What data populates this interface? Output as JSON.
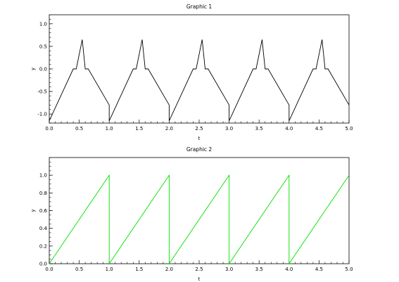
{
  "chart_data": [
    {
      "type": "line",
      "title": "Graphic 1",
      "xlabel": "t",
      "ylabel": "y",
      "xlim": [
        0,
        5
      ],
      "ylim": [
        -1.2,
        1.2
      ],
      "x_ticks": [
        "0.0",
        "0.5",
        "1.0",
        "1.5",
        "2.0",
        "2.5",
        "3.0",
        "3.5",
        "4.0",
        "4.5",
        "5.0"
      ],
      "y_ticks": [
        "-1.0",
        "-0.5",
        "0.0",
        "0.5",
        "1.0"
      ],
      "grid": false,
      "series": [
        {
          "color": "#000000",
          "x": [
            0.0,
            0.4,
            0.45,
            0.55,
            0.6,
            0.65,
            1.0,
            1.0,
            1.4,
            1.45,
            1.55,
            1.6,
            1.65,
            2.0,
            2.0,
            2.4,
            2.45,
            2.55,
            2.6,
            2.65,
            3.0,
            3.0,
            3.4,
            3.45,
            3.55,
            3.6,
            3.65,
            4.0,
            4.0,
            4.4,
            4.45,
            4.55,
            4.6,
            4.65,
            5.0
          ],
          "y": [
            -1.15,
            0.0,
            0.0,
            0.65,
            0.0,
            0.0,
            -0.8,
            -1.15,
            0.0,
            0.0,
            0.65,
            0.0,
            0.0,
            -0.8,
            -1.15,
            0.0,
            0.0,
            0.65,
            0.0,
            0.0,
            -0.8,
            -1.15,
            0.0,
            0.0,
            0.65,
            0.0,
            0.0,
            -0.8,
            -1.15,
            0.0,
            0.0,
            0.65,
            0.0,
            0.0,
            -0.8
          ]
        }
      ]
    },
    {
      "type": "line",
      "title": "Graphic 2",
      "xlabel": "t",
      "ylabel": "y",
      "xlim": [
        0,
        5
      ],
      "ylim": [
        0,
        1.2
      ],
      "x_ticks": [
        "0.0",
        "0.5",
        "1.0",
        "1.5",
        "2.0",
        "2.5",
        "3.0",
        "3.5",
        "4.0",
        "4.5",
        "5.0"
      ],
      "y_ticks": [
        "0.0",
        "0.2",
        "0.4",
        "0.6",
        "0.8",
        "1.0"
      ],
      "grid": false,
      "series": [
        {
          "color": "#00e000",
          "x": [
            0.0,
            1.0,
            1.0,
            2.0,
            2.0,
            3.0,
            3.0,
            4.0,
            4.0,
            5.0
          ],
          "y": [
            0.0,
            1.0,
            0.0,
            1.0,
            0.0,
            1.0,
            0.0,
            1.0,
            0.0,
            1.0
          ]
        }
      ]
    }
  ]
}
